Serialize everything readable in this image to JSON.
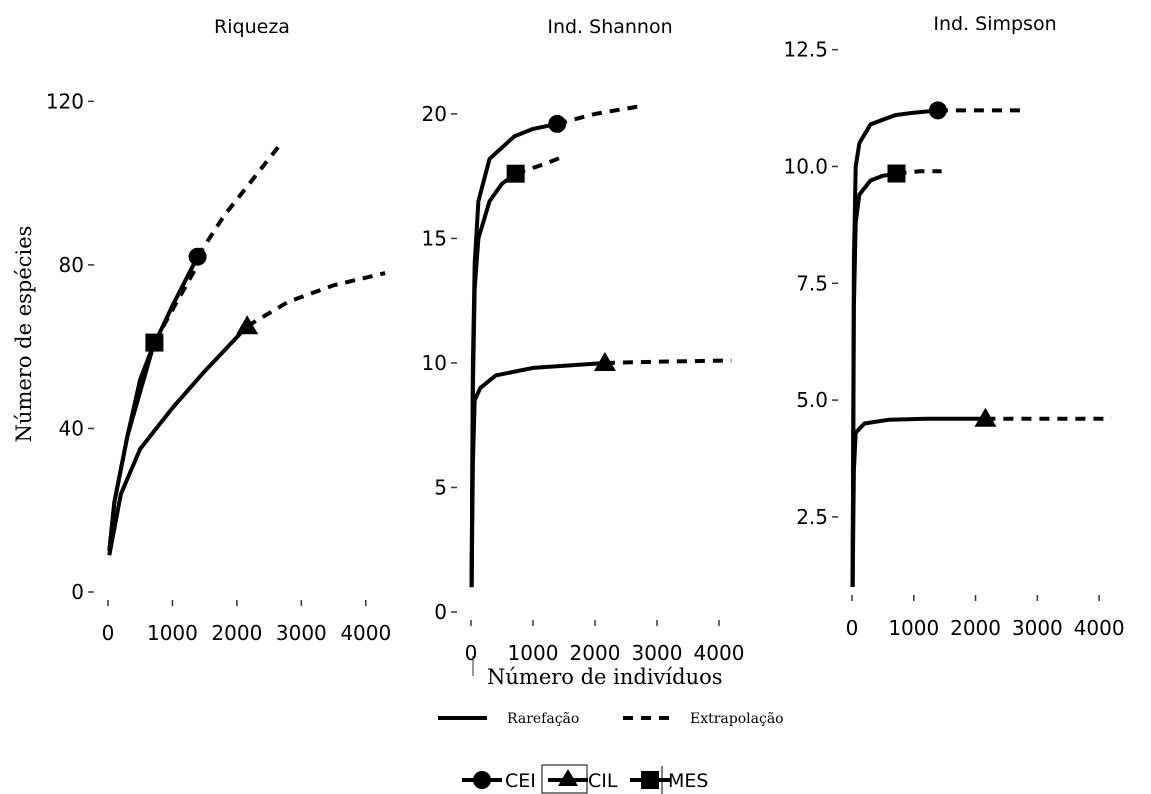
{
  "chart_data": [
    {
      "type": "line",
      "title": "Riqueza",
      "ylabel": "Número de espécies",
      "xlabel": "",
      "xlim": [
        0,
        4500
      ],
      "ylim": [
        0,
        124
      ],
      "xticks": [
        0,
        1000,
        2000,
        3000,
        4000
      ],
      "xtick_labels": [
        "0",
        "1000",
        "2000",
        "3000",
        "4000"
      ],
      "yticks": [
        0,
        40,
        80,
        120
      ],
      "ytick_labels": [
        "0",
        "40",
        "80",
        "120"
      ],
      "series": [
        {
          "name": "CEI",
          "marker": "circle",
          "rarefaction": [
            [
              20,
              10
            ],
            [
              100,
              22
            ],
            [
              300,
              38
            ],
            [
              700,
              60
            ],
            [
              1000,
              70
            ],
            [
              1390,
              82
            ]
          ],
          "extrapolation": [
            [
              1390,
              82
            ],
            [
              1800,
              92
            ],
            [
              2200,
              100
            ],
            [
              2700,
              110
            ]
          ],
          "observed": [
            1390,
            82
          ]
        },
        {
          "name": "CIL",
          "marker": "triangle",
          "rarefaction": [
            [
              20,
              9
            ],
            [
              200,
              24
            ],
            [
              500,
              35
            ],
            [
              1000,
              45
            ],
            [
              1500,
              54
            ],
            [
              2160,
              65
            ]
          ],
          "extrapolation": [
            [
              2160,
              65
            ],
            [
              2800,
              71
            ],
            [
              3500,
              75
            ],
            [
              4300,
              78
            ]
          ],
          "observed": [
            2160,
            65
          ]
        },
        {
          "name": "MES",
          "marker": "square",
          "rarefaction": [
            [
              20,
              10
            ],
            [
              100,
              22
            ],
            [
              300,
              38
            ],
            [
              500,
              52
            ],
            [
              720,
              61
            ]
          ],
          "extrapolation": [
            [
              720,
              61
            ],
            [
              1000,
              69
            ],
            [
              1390,
              80
            ]
          ],
          "observed": [
            720,
            61
          ]
        }
      ]
    },
    {
      "type": "line",
      "title": "Ind. Shannon",
      "xlabel": "Número de indivíduos",
      "ylabel": "",
      "xlim": [
        0,
        4500
      ],
      "ylim": [
        0,
        20.8
      ],
      "xticks": [
        0,
        1000,
        2000,
        3000,
        4000
      ],
      "xtick_labels": [
        "0",
        "1000",
        "2000",
        "3000",
        "4000"
      ],
      "yticks": [
        0,
        5,
        10,
        15,
        20
      ],
      "ytick_labels": [
        "0",
        "5",
        "10",
        "15",
        "20"
      ],
      "series": [
        {
          "name": "CEI",
          "marker": "circle",
          "rarefaction": [
            [
              10,
              1
            ],
            [
              30,
              10
            ],
            [
              60,
              14
            ],
            [
              120,
              16.5
            ],
            [
              300,
              18.2
            ],
            [
              700,
              19.1
            ],
            [
              1000,
              19.4
            ],
            [
              1390,
              19.6
            ]
          ],
          "extrapolation": [
            [
              1390,
              19.6
            ],
            [
              2000,
              20.0
            ],
            [
              2700,
              20.3
            ]
          ],
          "observed": [
            1390,
            19.6
          ]
        },
        {
          "name": "CIL",
          "marker": "triangle",
          "rarefaction": [
            [
              10,
              1
            ],
            [
              30,
              6
            ],
            [
              60,
              8.5
            ],
            [
              150,
              9
            ],
            [
              400,
              9.5
            ],
            [
              1000,
              9.8
            ],
            [
              2160,
              10
            ]
          ],
          "extrapolation": [
            [
              2160,
              10
            ],
            [
              3000,
              10.05
            ],
            [
              4200,
              10.1
            ]
          ],
          "observed": [
            2160,
            10
          ]
        },
        {
          "name": "MES",
          "marker": "square",
          "rarefaction": [
            [
              10,
              1
            ],
            [
              30,
              9
            ],
            [
              60,
              13
            ],
            [
              120,
              15
            ],
            [
              300,
              16.5
            ],
            [
              500,
              17.2
            ],
            [
              720,
              17.6
            ]
          ],
          "extrapolation": [
            [
              720,
              17.6
            ],
            [
              1200,
              18.0
            ],
            [
              1500,
              18.3
            ]
          ],
          "observed": [
            720,
            17.6
          ]
        }
      ]
    },
    {
      "type": "line",
      "title": "Ind. Simpson",
      "xlabel": "",
      "ylabel": "",
      "xlim": [
        0,
        4500
      ],
      "ylim": [
        1.0,
        12.6
      ],
      "xticks": [
        0,
        1000,
        2000,
        3000,
        4000
      ],
      "xtick_labels": [
        "0",
        "1000",
        "2000",
        "3000",
        "4000"
      ],
      "yticks": [
        2.5,
        5.0,
        7.5,
        10.0,
        12.5
      ],
      "ytick_labels": [
        "2.5",
        "5.0",
        "7.5",
        "10.0",
        "12.5"
      ],
      "series": [
        {
          "name": "CEI",
          "marker": "circle",
          "rarefaction": [
            [
              10,
              1
            ],
            [
              30,
              8
            ],
            [
              60,
              10
            ],
            [
              120,
              10.5
            ],
            [
              300,
              10.9
            ],
            [
              700,
              11.1
            ],
            [
              1000,
              11.15
            ],
            [
              1390,
              11.2
            ]
          ],
          "extrapolation": [
            [
              1390,
              11.2
            ],
            [
              2000,
              11.2
            ],
            [
              2800,
              11.2
            ]
          ],
          "observed": [
            1390,
            11.2
          ]
        },
        {
          "name": "CIL",
          "marker": "triangle",
          "rarefaction": [
            [
              10,
              1
            ],
            [
              30,
              3.5
            ],
            [
              60,
              4.3
            ],
            [
              200,
              4.5
            ],
            [
              600,
              4.58
            ],
            [
              1200,
              4.6
            ],
            [
              2160,
              4.6
            ]
          ],
          "extrapolation": [
            [
              2160,
              4.6
            ],
            [
              3000,
              4.6
            ],
            [
              4200,
              4.6
            ]
          ],
          "observed": [
            2160,
            4.6
          ]
        },
        {
          "name": "MES",
          "marker": "square",
          "rarefaction": [
            [
              10,
              1
            ],
            [
              30,
              7
            ],
            [
              60,
              8.8
            ],
            [
              120,
              9.4
            ],
            [
              300,
              9.7
            ],
            [
              500,
              9.8
            ],
            [
              720,
              9.85
            ]
          ],
          "extrapolation": [
            [
              720,
              9.85
            ],
            [
              1100,
              9.9
            ],
            [
              1450,
              9.9
            ]
          ],
          "observed": [
            720,
            9.85
          ]
        }
      ]
    }
  ],
  "legend": {
    "line_types": [
      {
        "label": "Rarefação",
        "style": "solid"
      },
      {
        "label": "Extrapolação",
        "style": "dashed"
      }
    ],
    "groups": [
      {
        "label": "CEI",
        "marker": "circle"
      },
      {
        "label": "CIL",
        "marker": "triangle"
      },
      {
        "label": "MES",
        "marker": "square"
      }
    ]
  },
  "colors": {
    "line": "#000000",
    "background": "#ffffff",
    "axis": "#333333"
  }
}
